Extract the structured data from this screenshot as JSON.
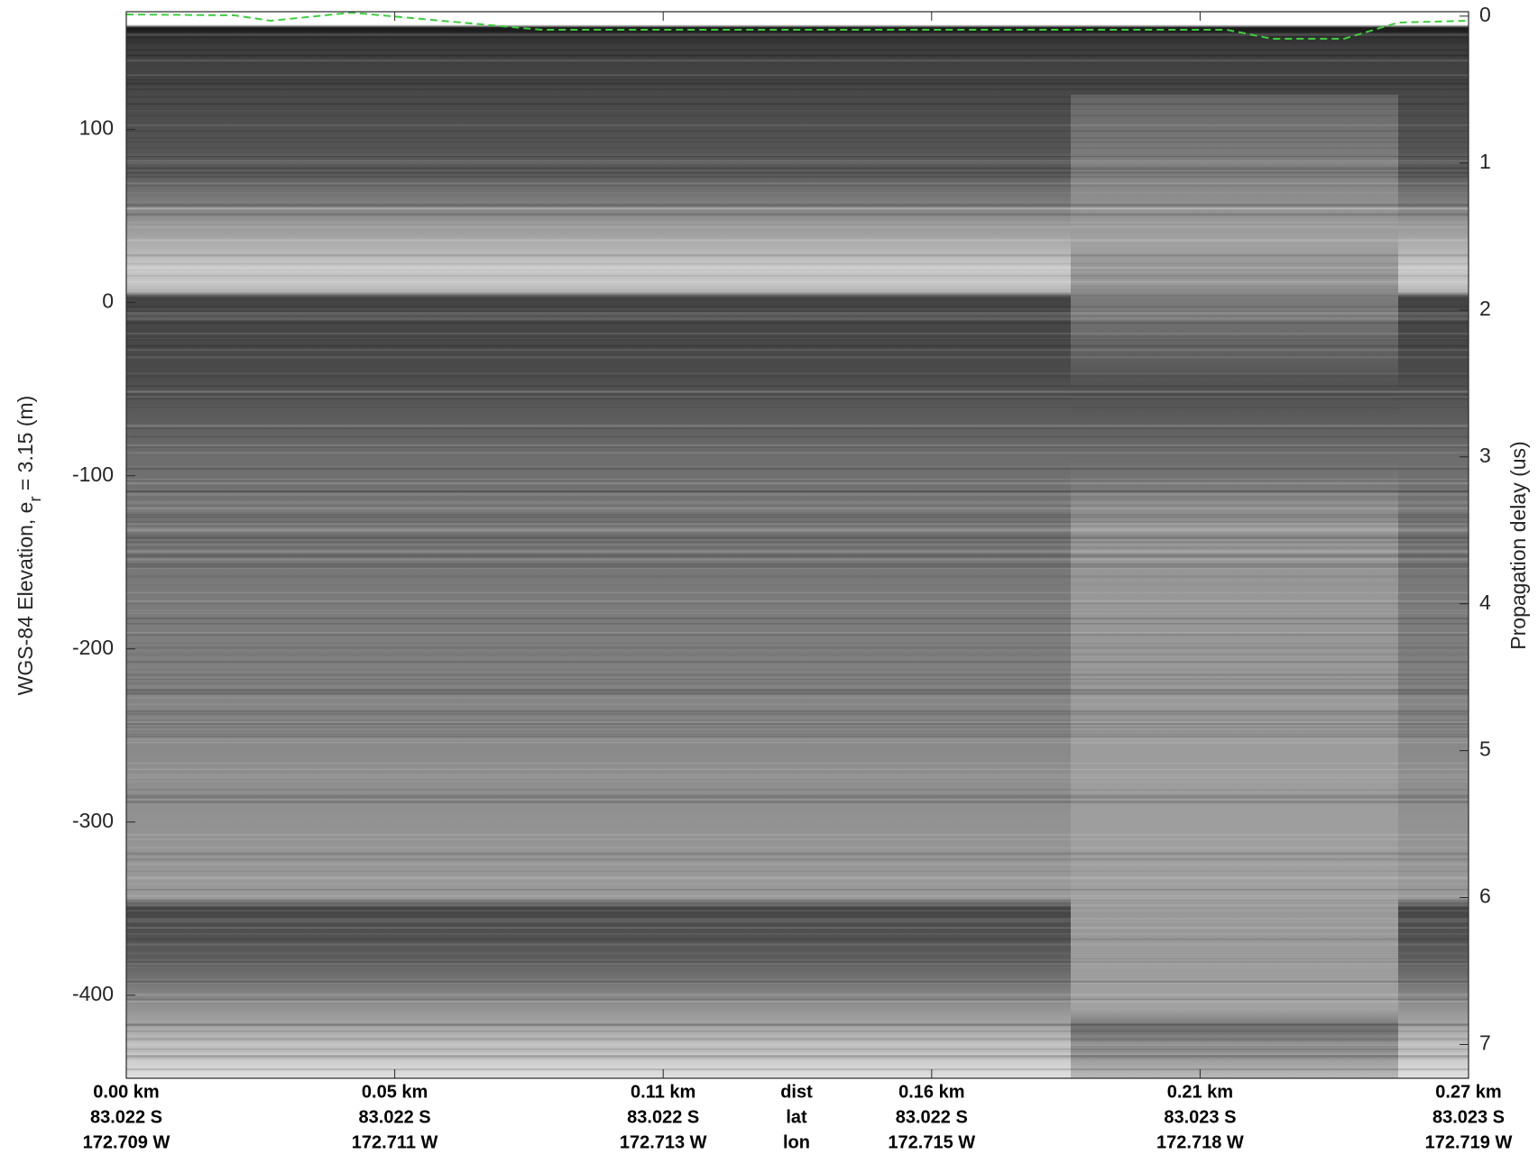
{
  "chart_data": {
    "type": "echogram",
    "ylabel_parts": [
      "WGS-84 Elevation, e",
      "r",
      " = 3.15 (m)"
    ],
    "y2label": "Propagation delay (us)",
    "ylim": [
      168,
      -448
    ],
    "yticks": [
      100,
      0,
      -100,
      -200,
      -300,
      -400
    ],
    "y2lim": [
      -0.03,
      7.23
    ],
    "y2ticks": [
      0,
      1,
      2,
      3,
      4,
      5,
      6,
      7
    ],
    "xlim": [
      0,
      0.268
    ],
    "xticks": [
      {
        "value": 0,
        "label": "0.00 km"
      },
      {
        "value": 0.0536,
        "label": "0.05 km"
      },
      {
        "value": 0.1072,
        "label": "0.11 km"
      },
      {
        "value": 0.1608,
        "label": "0.16 km"
      },
      {
        "value": 0.2144,
        "label": "0.21 km"
      },
      {
        "value": 0.268,
        "label": "0.27 km"
      }
    ],
    "xtick_lat_labels": [
      "83.022 S",
      "83.022 S",
      "83.022 S",
      "83.022 S",
      "83.023 S",
      "83.023 S"
    ],
    "xtick_lon_labels": [
      "172.709 W",
      "172.711 W",
      "172.713 W",
      "172.715 W",
      "172.718 W",
      "172.719 W"
    ],
    "x_row_names": [
      "dist",
      "lat",
      "lon"
    ]
  }
}
